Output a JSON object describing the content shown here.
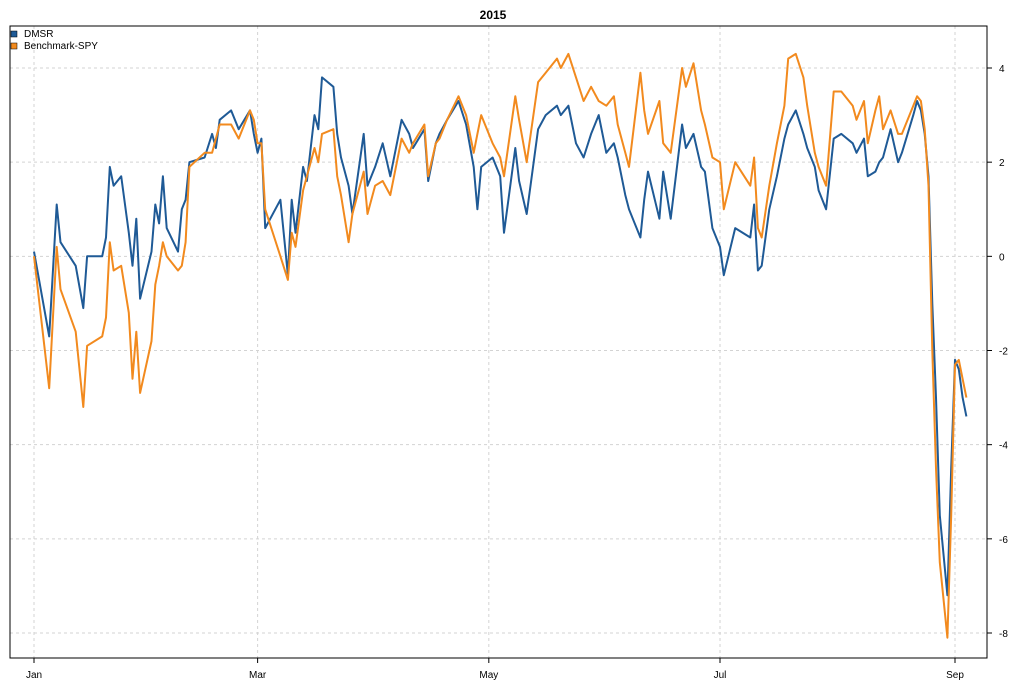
{
  "chart_data": {
    "type": "line",
    "title": "2015",
    "xlabel": "",
    "ylabel": "",
    "x_ticks": [
      {
        "label": "Jan",
        "day": 1
      },
      {
        "label": "Mar",
        "day": 60
      },
      {
        "label": "May",
        "day": 121
      },
      {
        "label": "Jul",
        "day": 182
      },
      {
        "label": "Sep",
        "day": 244
      }
    ],
    "y_ticks": [
      -8,
      -6,
      -4,
      -2,
      0,
      2,
      4
    ],
    "xlim": [
      1,
      244
    ],
    "ylim": [
      -8,
      4.5
    ],
    "grid": true,
    "legend_position": "top-left",
    "y_axis_side": "right",
    "series": [
      {
        "name": "DMSR",
        "color": "#1f5a96",
        "points": [
          [
            1,
            0.1
          ],
          [
            5,
            -1.7
          ],
          [
            7,
            1.1
          ],
          [
            8,
            0.3
          ],
          [
            12,
            -0.2
          ],
          [
            14,
            -1.1
          ],
          [
            15,
            0.0
          ],
          [
            19,
            0.0
          ],
          [
            20,
            0.4
          ],
          [
            21,
            1.9
          ],
          [
            22,
            1.5
          ],
          [
            24,
            1.7
          ],
          [
            26,
            0.5
          ],
          [
            27,
            -0.2
          ],
          [
            28,
            0.8
          ],
          [
            29,
            -0.9
          ],
          [
            32,
            0.1
          ],
          [
            33,
            1.1
          ],
          [
            34,
            0.7
          ],
          [
            35,
            1.7
          ],
          [
            36,
            0.6
          ],
          [
            39,
            0.1
          ],
          [
            40,
            1.0
          ],
          [
            41,
            1.2
          ],
          [
            42,
            2.0
          ],
          [
            46,
            2.1
          ],
          [
            48,
            2.6
          ],
          [
            49,
            2.3
          ],
          [
            50,
            2.9
          ],
          [
            53,
            3.1
          ],
          [
            55,
            2.7
          ],
          [
            58,
            3.1
          ],
          [
            59,
            2.6
          ],
          [
            60,
            2.2
          ],
          [
            61,
            2.5
          ],
          [
            62,
            0.6
          ],
          [
            66,
            1.2
          ],
          [
            68,
            -0.4
          ],
          [
            69,
            1.2
          ],
          [
            70,
            0.5
          ],
          [
            72,
            1.9
          ],
          [
            73,
            1.6
          ],
          [
            75,
            3.0
          ],
          [
            76,
            2.7
          ],
          [
            77,
            3.8
          ],
          [
            80,
            3.6
          ],
          [
            81,
            2.6
          ],
          [
            82,
            2.1
          ],
          [
            84,
            1.5
          ],
          [
            85,
            0.9
          ],
          [
            88,
            2.6
          ],
          [
            89,
            1.5
          ],
          [
            91,
            1.9
          ],
          [
            93,
            2.4
          ],
          [
            95,
            1.7
          ],
          [
            98,
            2.9
          ],
          [
            100,
            2.6
          ],
          [
            101,
            2.3
          ],
          [
            104,
            2.7
          ],
          [
            105,
            1.6
          ],
          [
            107,
            2.4
          ],
          [
            108,
            2.6
          ],
          [
            110,
            2.9
          ],
          [
            113,
            3.3
          ],
          [
            115,
            2.8
          ],
          [
            117,
            1.9
          ],
          [
            118,
            1.0
          ],
          [
            119,
            1.9
          ],
          [
            122,
            2.1
          ],
          [
            124,
            1.7
          ],
          [
            125,
            0.5
          ],
          [
            128,
            2.3
          ],
          [
            129,
            1.6
          ],
          [
            131,
            0.9
          ],
          [
            134,
            2.7
          ],
          [
            136,
            3.0
          ],
          [
            139,
            3.2
          ],
          [
            140,
            3.0
          ],
          [
            142,
            3.2
          ],
          [
            144,
            2.4
          ],
          [
            146,
            2.1
          ],
          [
            148,
            2.6
          ],
          [
            150,
            3.0
          ],
          [
            152,
            2.2
          ],
          [
            154,
            2.4
          ],
          [
            155,
            2.1
          ],
          [
            157,
            1.3
          ],
          [
            158,
            1.0
          ],
          [
            161,
            0.4
          ],
          [
            162,
            1.2
          ],
          [
            163,
            1.8
          ],
          [
            166,
            0.8
          ],
          [
            167,
            1.8
          ],
          [
            169,
            0.8
          ],
          [
            172,
            2.8
          ],
          [
            173,
            2.3
          ],
          [
            175,
            2.6
          ],
          [
            177,
            1.9
          ],
          [
            178,
            1.8
          ],
          [
            180,
            0.6
          ],
          [
            182,
            0.2
          ],
          [
            183,
            -0.4
          ],
          [
            186,
            0.6
          ],
          [
            190,
            0.4
          ],
          [
            191,
            1.1
          ],
          [
            192,
            -0.3
          ],
          [
            193,
            -0.2
          ],
          [
            195,
            1.0
          ],
          [
            197,
            1.7
          ],
          [
            199,
            2.5
          ],
          [
            200,
            2.8
          ],
          [
            202,
            3.1
          ],
          [
            204,
            2.6
          ],
          [
            205,
            2.3
          ],
          [
            207,
            1.9
          ],
          [
            208,
            1.4
          ],
          [
            210,
            1.0
          ],
          [
            212,
            2.5
          ],
          [
            214,
            2.6
          ],
          [
            217,
            2.4
          ],
          [
            218,
            2.2
          ],
          [
            220,
            2.5
          ],
          [
            221,
            1.7
          ],
          [
            223,
            1.8
          ],
          [
            224,
            2.0
          ],
          [
            225,
            2.1
          ],
          [
            227,
            2.7
          ],
          [
            229,
            2.0
          ],
          [
            230,
            2.2
          ],
          [
            233,
            3.0
          ],
          [
            234,
            3.3
          ],
          [
            235,
            3.1
          ],
          [
            236,
            2.6
          ],
          [
            237,
            1.7
          ],
          [
            238,
            -1.0
          ],
          [
            239,
            -3.0
          ],
          [
            240,
            -5.5
          ],
          [
            242,
            -7.2
          ],
          [
            243,
            -4.5
          ],
          [
            244,
            -2.2
          ],
          [
            245,
            -2.4
          ],
          [
            246,
            -3.0
          ],
          [
            247,
            -3.4
          ]
        ]
      },
      {
        "name": "Benchmark-SPY",
        "color": "#f28a1e",
        "points": [
          [
            1,
            0.0
          ],
          [
            5,
            -2.8
          ],
          [
            7,
            0.2
          ],
          [
            8,
            -0.7
          ],
          [
            12,
            -1.6
          ],
          [
            14,
            -3.2
          ],
          [
            15,
            -1.9
          ],
          [
            19,
            -1.7
          ],
          [
            20,
            -1.3
          ],
          [
            21,
            0.3
          ],
          [
            22,
            -0.3
          ],
          [
            24,
            -0.2
          ],
          [
            26,
            -1.2
          ],
          [
            27,
            -2.6
          ],
          [
            28,
            -1.6
          ],
          [
            29,
            -2.9
          ],
          [
            32,
            -1.8
          ],
          [
            33,
            -0.6
          ],
          [
            34,
            -0.2
          ],
          [
            35,
            0.3
          ],
          [
            36,
            0.0
          ],
          [
            39,
            -0.3
          ],
          [
            40,
            -0.2
          ],
          [
            41,
            0.3
          ],
          [
            42,
            1.9
          ],
          [
            46,
            2.2
          ],
          [
            48,
            2.2
          ],
          [
            49,
            2.5
          ],
          [
            50,
            2.8
          ],
          [
            53,
            2.8
          ],
          [
            55,
            2.5
          ],
          [
            58,
            3.1
          ],
          [
            59,
            2.9
          ],
          [
            60,
            2.4
          ],
          [
            61,
            2.4
          ],
          [
            62,
            1.0
          ],
          [
            66,
            0.0
          ],
          [
            68,
            -0.5
          ],
          [
            69,
            0.5
          ],
          [
            70,
            0.2
          ],
          [
            72,
            1.4
          ],
          [
            73,
            1.7
          ],
          [
            75,
            2.3
          ],
          [
            76,
            2.0
          ],
          [
            77,
            2.6
          ],
          [
            80,
            2.7
          ],
          [
            81,
            1.7
          ],
          [
            82,
            1.3
          ],
          [
            84,
            0.3
          ],
          [
            85,
            0.9
          ],
          [
            88,
            1.8
          ],
          [
            89,
            0.9
          ],
          [
            91,
            1.5
          ],
          [
            93,
            1.6
          ],
          [
            95,
            1.3
          ],
          [
            98,
            2.5
          ],
          [
            100,
            2.2
          ],
          [
            101,
            2.4
          ],
          [
            104,
            2.8
          ],
          [
            105,
            1.7
          ],
          [
            107,
            2.4
          ],
          [
            108,
            2.5
          ],
          [
            110,
            2.9
          ],
          [
            113,
            3.4
          ],
          [
            115,
            3.0
          ],
          [
            117,
            2.2
          ],
          [
            118,
            2.6
          ],
          [
            119,
            3.0
          ],
          [
            122,
            2.4
          ],
          [
            124,
            2.1
          ],
          [
            125,
            1.7
          ],
          [
            128,
            3.4
          ],
          [
            129,
            2.9
          ],
          [
            131,
            2.0
          ],
          [
            134,
            3.7
          ],
          [
            136,
            3.9
          ],
          [
            139,
            4.2
          ],
          [
            140,
            4.0
          ],
          [
            142,
            4.3
          ],
          [
            144,
            3.8
          ],
          [
            146,
            3.3
          ],
          [
            148,
            3.6
          ],
          [
            150,
            3.3
          ],
          [
            152,
            3.2
          ],
          [
            154,
            3.4
          ],
          [
            155,
            2.8
          ],
          [
            157,
            2.2
          ],
          [
            158,
            1.9
          ],
          [
            161,
            3.9
          ],
          [
            162,
            3.1
          ],
          [
            163,
            2.6
          ],
          [
            166,
            3.3
          ],
          [
            167,
            2.4
          ],
          [
            169,
            2.2
          ],
          [
            172,
            4.0
          ],
          [
            173,
            3.6
          ],
          [
            175,
            4.1
          ],
          [
            177,
            3.1
          ],
          [
            178,
            2.8
          ],
          [
            180,
            2.1
          ],
          [
            182,
            2.0
          ],
          [
            183,
            1.0
          ],
          [
            186,
            2.0
          ],
          [
            190,
            1.5
          ],
          [
            191,
            2.1
          ],
          [
            192,
            0.6
          ],
          [
            193,
            0.4
          ],
          [
            195,
            1.5
          ],
          [
            197,
            2.4
          ],
          [
            199,
            3.2
          ],
          [
            200,
            4.2
          ],
          [
            202,
            4.3
          ],
          [
            204,
            3.8
          ],
          [
            205,
            3.2
          ],
          [
            207,
            2.2
          ],
          [
            208,
            1.9
          ],
          [
            210,
            1.5
          ],
          [
            212,
            3.5
          ],
          [
            214,
            3.5
          ],
          [
            217,
            3.2
          ],
          [
            218,
            2.9
          ],
          [
            220,
            3.3
          ],
          [
            221,
            2.4
          ],
          [
            223,
            3.1
          ],
          [
            224,
            3.4
          ],
          [
            225,
            2.7
          ],
          [
            227,
            3.1
          ],
          [
            229,
            2.6
          ],
          [
            230,
            2.6
          ],
          [
            233,
            3.2
          ],
          [
            234,
            3.4
          ],
          [
            235,
            3.3
          ],
          [
            236,
            2.7
          ],
          [
            237,
            1.5
          ],
          [
            238,
            -2.0
          ],
          [
            239,
            -4.5
          ],
          [
            240,
            -6.5
          ],
          [
            242,
            -8.1
          ],
          [
            243,
            -5.5
          ],
          [
            244,
            -2.3
          ],
          [
            245,
            -2.2
          ],
          [
            246,
            -2.6
          ],
          [
            247,
            -3.0
          ]
        ]
      }
    ]
  }
}
